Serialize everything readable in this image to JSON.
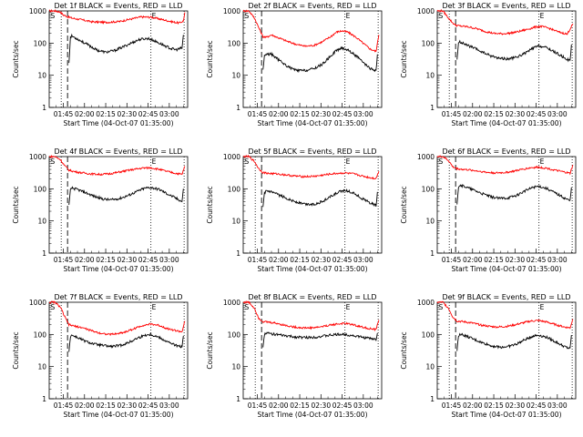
{
  "chart_data": {
    "type": "line",
    "ylabel": "Counts/sec",
    "xlabel": "Start Time (04-Oct-07 01:35:00)",
    "yscale": "log",
    "ylim": [
      1,
      1000
    ],
    "y_ticks": [
      "1",
      "10",
      "100",
      "1000"
    ],
    "x_tick_labels": [
      "01:45",
      "02:00",
      "02:15",
      "02:30",
      "02:45",
      "03:00"
    ],
    "x_tick_minutes": [
      10,
      25,
      40,
      55,
      70,
      85
    ],
    "xlim_minutes": [
      0,
      98
    ],
    "marker_labels": {
      "start": "S",
      "end": "E"
    },
    "series_colors": {
      "events": "#000000",
      "lld": "#ff0000"
    },
    "panels": [
      {
        "title": "Det 1f BLACK = Events, RED = LLD",
        "dotted_minutes": [
          8.5,
          72,
          95.5
        ],
        "dashed_minute": 13,
        "lld": {
          "x": [
            0,
            4,
            8,
            10,
            13,
            16,
            22,
            30,
            40,
            50,
            58,
            65,
            72,
            80,
            86,
            92,
            95,
            96
          ],
          "y": [
            1000,
            1000,
            920,
            750,
            660,
            600,
            540,
            460,
            440,
            470,
            560,
            650,
            640,
            540,
            470,
            420,
            490,
            900
          ]
        },
        "events": {
          "x": [
            14,
            15,
            16,
            18,
            22,
            28,
            34,
            40,
            46,
            52,
            58,
            64,
            70,
            74,
            80,
            86,
            90,
            94,
            95
          ],
          "y": [
            25,
            150,
            165,
            150,
            120,
            85,
            60,
            52,
            58,
            75,
            100,
            130,
            140,
            120,
            90,
            68,
            62,
            70,
            180
          ]
        }
      },
      {
        "title": "Det 2f BLACK = Events, RED = LLD",
        "dotted_minutes": [
          8.5,
          72,
          95.5
        ],
        "dashed_minute": 13,
        "lld": {
          "x": [
            0,
            4,
            8,
            11,
            14,
            16,
            20,
            26,
            32,
            38,
            44,
            50,
            56,
            62,
            66,
            70,
            74,
            80,
            86,
            90,
            94,
            96
          ],
          "y": [
            1000,
            1000,
            600,
            300,
            160,
            150,
            180,
            140,
            110,
            90,
            80,
            85,
            110,
            160,
            220,
            240,
            220,
            150,
            90,
            65,
            55,
            180
          ]
        },
        "events": {
          "x": [
            14,
            15,
            16,
            20,
            26,
            32,
            38,
            44,
            50,
            56,
            62,
            66,
            70,
            74,
            80,
            86,
            90,
            94,
            95
          ],
          "y": [
            15,
            40,
            45,
            45,
            28,
            18,
            14,
            14,
            16,
            22,
            40,
            60,
            70,
            62,
            40,
            22,
            16,
            14,
            45
          ]
        }
      },
      {
        "title": "Det 3f BLACK = Events, RED = LLD",
        "dotted_minutes": [
          8.5,
          72,
          95.5
        ],
        "dashed_minute": 13,
        "lld": {
          "x": [
            0,
            4,
            8,
            11,
            13,
            16,
            22,
            28,
            34,
            40,
            46,
            52,
            58,
            64,
            70,
            74,
            80,
            86,
            92,
            96
          ],
          "y": [
            1000,
            1000,
            600,
            420,
            360,
            340,
            320,
            280,
            230,
            200,
            195,
            205,
            230,
            270,
            320,
            330,
            280,
            220,
            190,
            400
          ]
        },
        "events": {
          "x": [
            14,
            15,
            16,
            20,
            26,
            32,
            38,
            44,
            50,
            56,
            62,
            68,
            72,
            78,
            84,
            90,
            94,
            95
          ],
          "y": [
            30,
            95,
            110,
            90,
            70,
            52,
            40,
            34,
            32,
            36,
            48,
            70,
            82,
            70,
            50,
            35,
            28,
            90
          ]
        }
      },
      {
        "title": "Det 4f BLACK = Events, RED = LLD",
        "dotted_minutes": [
          8.5,
          72,
          95.5
        ],
        "dashed_minute": 13,
        "lld": {
          "x": [
            0,
            4,
            8,
            11,
            14,
            18,
            24,
            30,
            36,
            42,
            48,
            54,
            60,
            66,
            72,
            78,
            84,
            90,
            94,
            96
          ],
          "y": [
            1000,
            1000,
            800,
            520,
            380,
            340,
            310,
            290,
            280,
            290,
            320,
            360,
            400,
            440,
            450,
            400,
            340,
            300,
            280,
            500
          ]
        },
        "events": {
          "x": [
            14,
            15,
            16,
            20,
            26,
            32,
            38,
            44,
            50,
            56,
            62,
            68,
            72,
            78,
            84,
            90,
            94,
            95
          ],
          "y": [
            30,
            90,
            105,
            95,
            75,
            58,
            48,
            45,
            50,
            62,
            82,
            105,
            110,
            95,
            68,
            50,
            40,
            100
          ]
        }
      },
      {
        "title": "Det 5f BLACK = Events, RED = LLD",
        "dotted_minutes": [
          8.5,
          72,
          95.5
        ],
        "dashed_minute": 13,
        "lld": {
          "x": [
            0,
            4,
            8,
            11,
            14,
            18,
            24,
            30,
            36,
            42,
            48,
            54,
            60,
            66,
            72,
            78,
            84,
            90,
            94,
            96
          ],
          "y": [
            1000,
            1000,
            700,
            420,
            320,
            300,
            290,
            270,
            250,
            240,
            240,
            255,
            280,
            300,
            310,
            290,
            250,
            220,
            210,
            350
          ]
        },
        "events": {
          "x": [
            14,
            15,
            16,
            20,
            26,
            32,
            38,
            44,
            50,
            56,
            62,
            68,
            72,
            78,
            84,
            90,
            94,
            95
          ],
          "y": [
            25,
            70,
            85,
            78,
            62,
            48,
            38,
            33,
            33,
            40,
            58,
            80,
            90,
            75,
            50,
            36,
            30,
            80
          ]
        }
      },
      {
        "title": "Det 6f BLACK = Events, RED = LLD",
        "dotted_minutes": [
          8.5,
          72,
          95.5
        ],
        "dashed_minute": 13,
        "lld": {
          "x": [
            0,
            4,
            8,
            11,
            14,
            18,
            24,
            30,
            36,
            42,
            48,
            54,
            60,
            66,
            72,
            78,
            84,
            90,
            94,
            96
          ],
          "y": [
            1000,
            1000,
            750,
            480,
            420,
            400,
            380,
            350,
            320,
            310,
            320,
            350,
            400,
            450,
            470,
            430,
            370,
            330,
            300,
            550
          ]
        },
        "events": {
          "x": [
            14,
            15,
            16,
            20,
            26,
            32,
            38,
            44,
            50,
            56,
            62,
            68,
            72,
            78,
            84,
            90,
            94,
            95
          ],
          "y": [
            35,
            115,
            130,
            115,
            90,
            70,
            56,
            50,
            52,
            62,
            85,
            112,
            120,
            100,
            72,
            52,
            42,
            110
          ]
        }
      },
      {
        "title": "Det 7f BLACK = Events, RED = LLD",
        "dotted_minutes": [
          8.5,
          72,
          95.5
        ],
        "dashed_minute": 13,
        "lld": {
          "x": [
            0,
            4,
            8,
            11,
            14,
            18,
            24,
            30,
            36,
            42,
            48,
            54,
            60,
            66,
            72,
            78,
            84,
            90,
            94,
            96
          ],
          "y": [
            1000,
            1000,
            700,
            350,
            200,
            180,
            160,
            130,
            110,
            100,
            105,
            120,
            150,
            190,
            210,
            190,
            150,
            130,
            120,
            260
          ]
        },
        "events": {
          "x": [
            14,
            15,
            16,
            20,
            26,
            32,
            38,
            44,
            50,
            56,
            62,
            68,
            72,
            78,
            84,
            90,
            94,
            95
          ],
          "y": [
            30,
            85,
            95,
            80,
            60,
            50,
            45,
            42,
            45,
            55,
            75,
            95,
            100,
            80,
            58,
            45,
            40,
            90
          ]
        }
      },
      {
        "title": "Det 8f BLACK = Events, RED = LLD",
        "dotted_minutes": [
          8.5,
          72,
          95.5
        ],
        "dashed_minute": 13,
        "lld": {
          "x": [
            0,
            4,
            8,
            11,
            14,
            18,
            24,
            30,
            36,
            42,
            48,
            54,
            60,
            66,
            72,
            78,
            84,
            90,
            94,
            96
          ],
          "y": [
            1000,
            1000,
            650,
            320,
            250,
            240,
            220,
            190,
            170,
            160,
            160,
            170,
            190,
            210,
            220,
            200,
            170,
            150,
            140,
            280
          ]
        },
        "events": {
          "x": [
            14,
            15,
            16,
            20,
            26,
            32,
            38,
            44,
            50,
            56,
            62,
            68,
            72,
            78,
            84,
            90,
            94,
            95
          ],
          "y": [
            40,
            100,
            110,
            105,
            95,
            88,
            82,
            80,
            82,
            88,
            95,
            100,
            100,
            92,
            82,
            75,
            70,
            110
          ]
        }
      },
      {
        "title": "Det 9f BLACK = Events, RED = LLD",
        "dotted_minutes": [
          8.5,
          72,
          95.5
        ],
        "dashed_minute": 13,
        "lld": {
          "x": [
            0,
            4,
            8,
            11,
            14,
            18,
            24,
            30,
            36,
            42,
            48,
            54,
            60,
            66,
            72,
            78,
            84,
            90,
            94,
            96
          ],
          "y": [
            1000,
            1000,
            650,
            350,
            260,
            250,
            230,
            200,
            180,
            170,
            175,
            195,
            225,
            260,
            270,
            240,
            200,
            170,
            160,
            300
          ]
        },
        "events": {
          "x": [
            14,
            15,
            16,
            20,
            26,
            32,
            38,
            44,
            50,
            56,
            62,
            68,
            72,
            78,
            84,
            90,
            94,
            95
          ],
          "y": [
            30,
            90,
            105,
            90,
            70,
            55,
            45,
            40,
            42,
            50,
            68,
            90,
            95,
            80,
            58,
            42,
            36,
            95
          ]
        }
      }
    ]
  }
}
